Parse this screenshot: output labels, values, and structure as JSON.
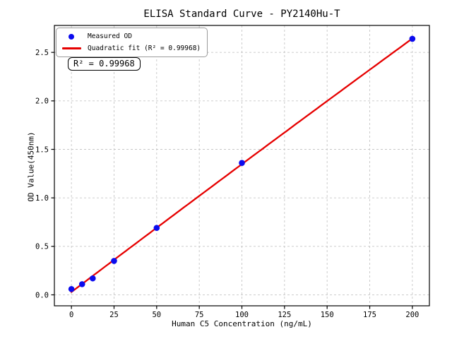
{
  "chart_data": {
    "type": "scatter",
    "title": "ELISA Standard Curve - PY2140Hu-T",
    "xlabel": "Human C5 Concentration (ng/mL)",
    "ylabel": "OD Value(450nm)",
    "xlim": [
      -10,
      210
    ],
    "ylim": [
      -0.113,
      2.778
    ],
    "xticks": [
      0,
      25,
      50,
      75,
      100,
      125,
      150,
      175,
      200
    ],
    "xtick_labels": [
      "0",
      "25",
      "50",
      "75",
      "100",
      "125",
      "150",
      "175",
      "200"
    ],
    "yticks": [
      0.0,
      0.5,
      1.0,
      1.5,
      2.0,
      2.5
    ],
    "ytick_labels": [
      "0.0",
      "0.5",
      "1.0",
      "1.5",
      "2.0",
      "2.5"
    ],
    "grid": true,
    "grid_style": "dashed",
    "grid_color": "#c6c6c6",
    "spine_color": "#000000",
    "legend_position": "upper-left",
    "series": [
      {
        "name": "Measured OD",
        "type": "scatter",
        "marker": "circle",
        "color": "#0b0bee",
        "x": [
          0,
          6.25,
          12.5,
          25,
          50,
          100,
          200
        ],
        "y": [
          0.06,
          0.11,
          0.17,
          0.35,
          0.69,
          1.36,
          2.64
        ]
      },
      {
        "name": "Quadratic fit (R² = 0.99968)",
        "type": "line",
        "fit": "quadratic",
        "color": "#e60000",
        "r_squared": 0.99968,
        "x_range": [
          0,
          200
        ]
      }
    ],
    "annotation": {
      "text": "R² = 0.99968"
    }
  }
}
